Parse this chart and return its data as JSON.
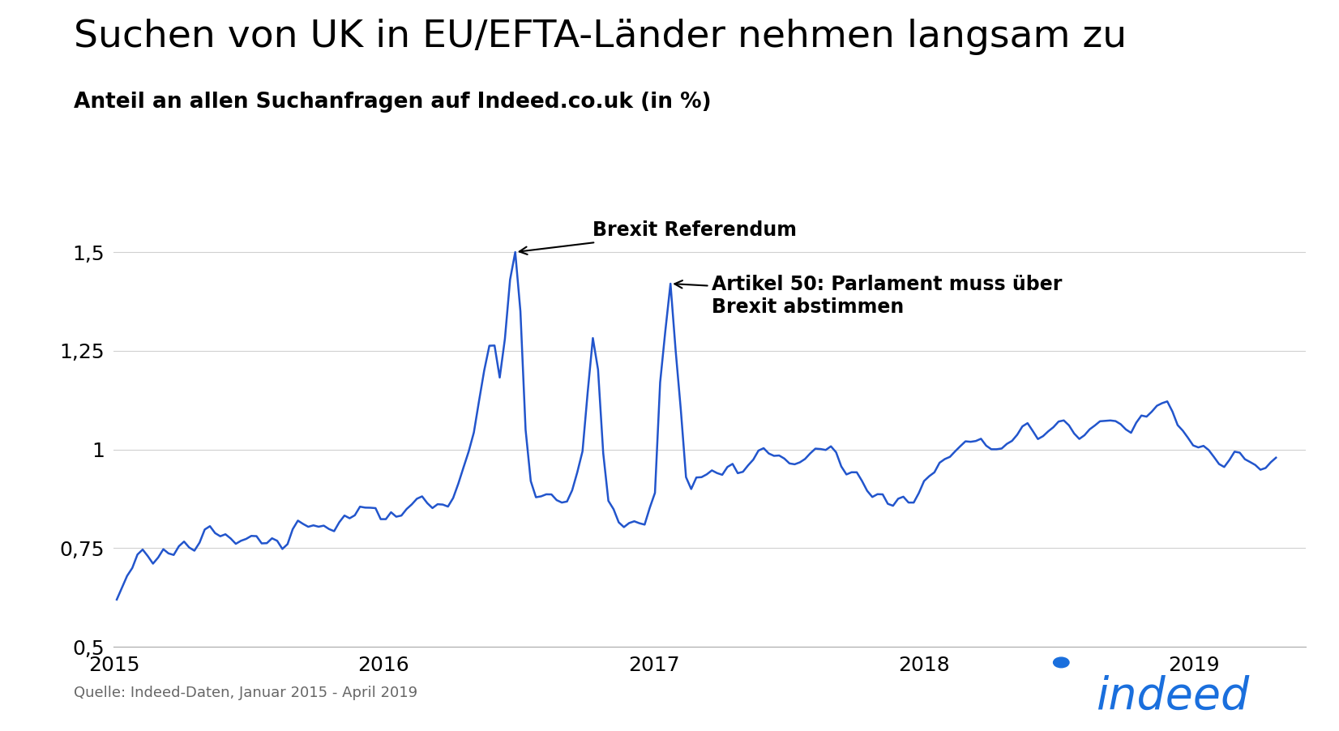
{
  "title": "Suchen von UK in EU/EFTA-Länder nehmen langsam zu",
  "subtitle": "Anteil an allen Suchanfragen auf Indeed.co.uk (in %)",
  "source_text": "Quelle: Indeed-Daten, Januar 2015 - April 2019",
  "line_color": "#2255cc",
  "background_color": "#ffffff",
  "ylim": [
    0.5,
    1.62
  ],
  "yticks": [
    0.5,
    0.75,
    1.0,
    1.25,
    1.5
  ],
  "ytick_labels": [
    "0,5",
    "0,75",
    "1",
    "1,25",
    "1,5"
  ],
  "xtick_labels": [
    "2015",
    "2016",
    "2017",
    "2018",
    "2019"
  ],
  "annotation1_text": "Brexit Referendum",
  "annotation2_text": "Artikel 50: Parlament muss über\nBrexit abstimmen",
  "indeed_color": "#1a6fdd",
  "title_fontsize": 34,
  "subtitle_fontsize": 19,
  "annotation_fontsize": 17
}
